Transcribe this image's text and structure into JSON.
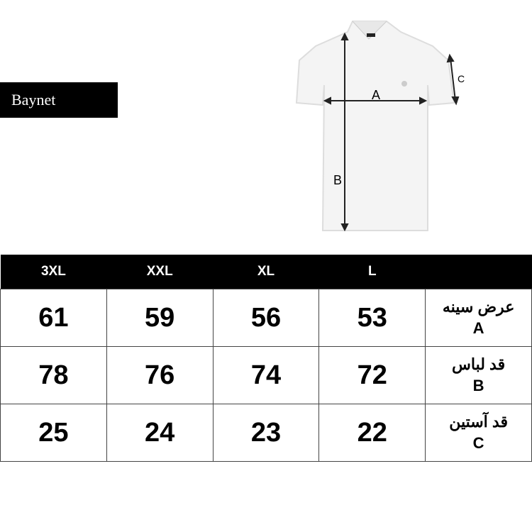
{
  "brand": {
    "logo_text": "Baynet"
  },
  "diagram": {
    "labels": {
      "a": "A",
      "b": "B",
      "c": "C"
    }
  },
  "table": {
    "headers": [
      "3XL",
      "XXL",
      "XL",
      "L",
      ""
    ],
    "rows": [
      {
        "values": [
          "61",
          "59",
          "56",
          "53"
        ],
        "label_fa": "عرض سینه",
        "label_code": "A"
      },
      {
        "values": [
          "78",
          "76",
          "74",
          "72"
        ],
        "label_fa": "قد لباس",
        "label_code": "B"
      },
      {
        "values": [
          "25",
          "24",
          "23",
          "22"
        ],
        "label_fa": "قد آستین",
        "label_code": "C"
      }
    ]
  }
}
